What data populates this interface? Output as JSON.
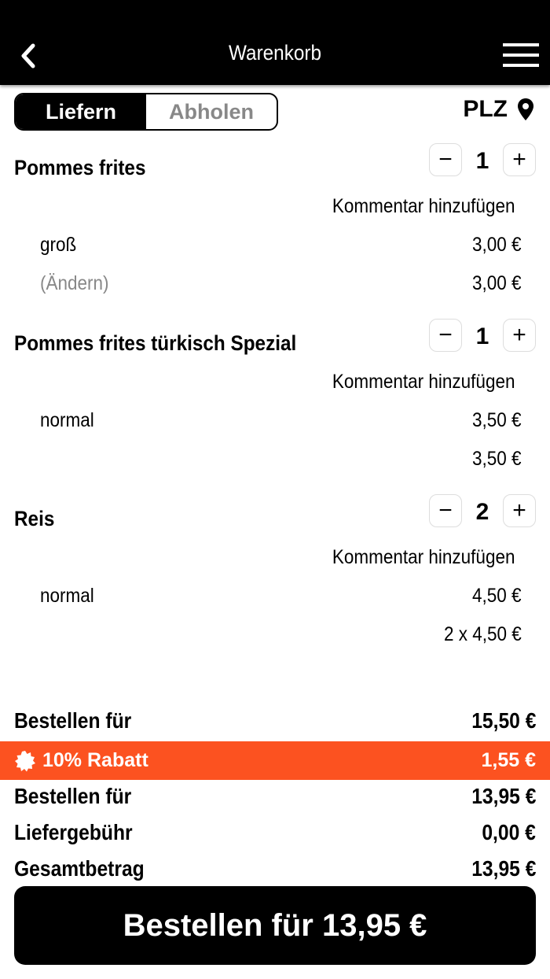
{
  "header": {
    "title": "Warenkorb"
  },
  "toggle": {
    "deliver": "Liefern",
    "pickup": "Abholen"
  },
  "plz": "PLZ",
  "comment_label": "Kommentar hinzufügen",
  "items": [
    {
      "name": "Pommes frites",
      "qty": "1",
      "option": "groß",
      "option_price": "3,00 €",
      "change": "(Ändern)",
      "total": "3,00 €"
    },
    {
      "name": "Pommes frites türkisch Spezial",
      "qty": "1",
      "option": "normal",
      "option_price": "3,50 €",
      "change": "",
      "total": "3,50 €"
    },
    {
      "name": "Reis",
      "qty": "2",
      "option": "normal",
      "option_price": "4,50 €",
      "change": "",
      "total": "2 x 4,50 €"
    }
  ],
  "totals": {
    "subtotal_label": "Bestellen für",
    "subtotal": "15,50 €",
    "discount_label": "10% Rabatt",
    "discount": "1,55 €",
    "after_label": "Bestellen für",
    "after": "13,95 €",
    "fee_label": "Liefergebühr",
    "fee": "0,00 €",
    "grand_label": "Gesamtbetrag",
    "grand": "13,95 €"
  },
  "cta": "Bestellen für 13,95 €",
  "colors": {
    "accent": "#fc5220",
    "header": "#000000"
  }
}
